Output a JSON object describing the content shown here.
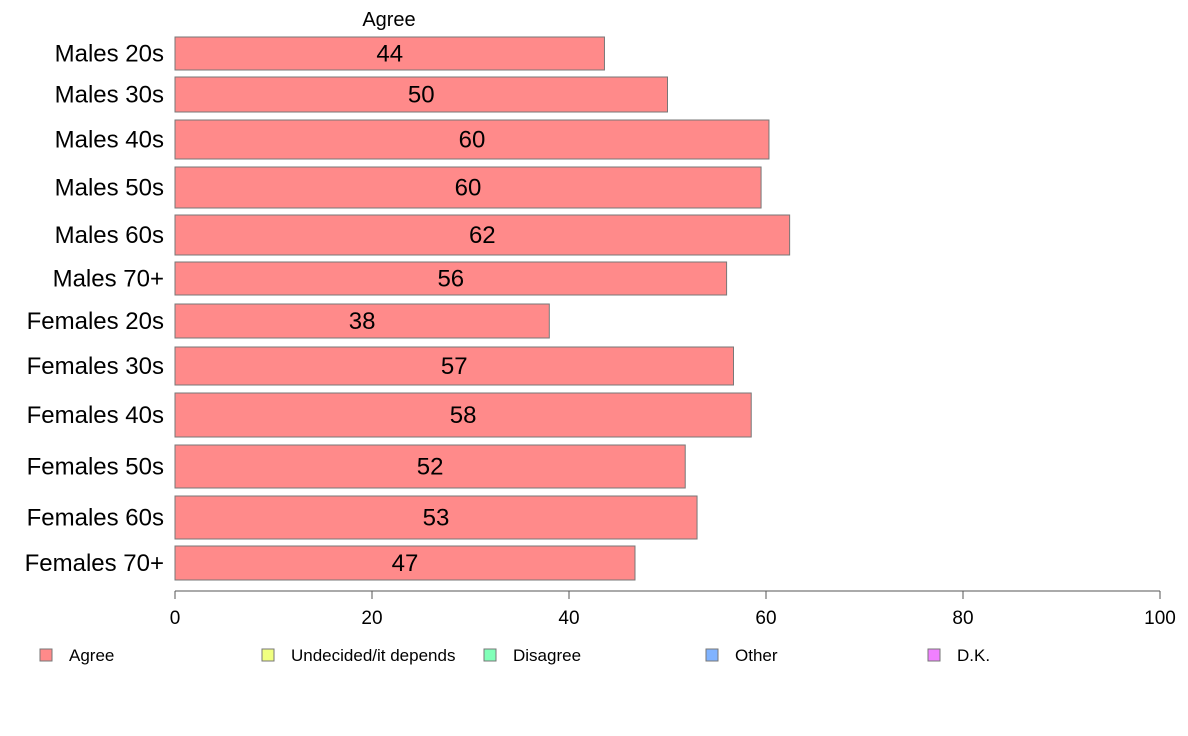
{
  "chart_data": {
    "type": "bar",
    "orientation": "horizontal",
    "series_title": "Agree",
    "categories": [
      "Males 20s",
      "Males 30s",
      "Males 40s",
      "Males 50s",
      "Males 60s",
      "Males 70+",
      "Females 20s",
      "Females 30s",
      "Females 40s",
      "Females 50s",
      "Females 60s",
      "Females 70+"
    ],
    "series": [
      {
        "name": "Agree",
        "color": "#ff8a8a",
        "values": [
          43.6,
          50.0,
          60.3,
          59.5,
          62.4,
          56.0,
          38.0,
          56.7,
          58.5,
          51.8,
          53.0,
          46.7
        ],
        "labels": [
          "44",
          "50",
          "60",
          "60",
          "62",
          "56",
          "38",
          "57",
          "58",
          "52",
          "53",
          "47"
        ]
      }
    ],
    "xlim": [
      0,
      100
    ],
    "xticks": [
      0,
      20,
      40,
      60,
      80,
      100
    ],
    "grid": false,
    "legend": {
      "placement": "bottom",
      "items": [
        {
          "label": "Agree",
          "color": "#ff8a8a"
        },
        {
          "label": "Undecided/it depends",
          "color": "#f0ff80"
        },
        {
          "label": "Disagree",
          "color": "#80ffb8"
        },
        {
          "label": "Other",
          "color": "#80b3ff"
        },
        {
          "label": "D.K.",
          "color": "#f080ff"
        }
      ]
    }
  }
}
